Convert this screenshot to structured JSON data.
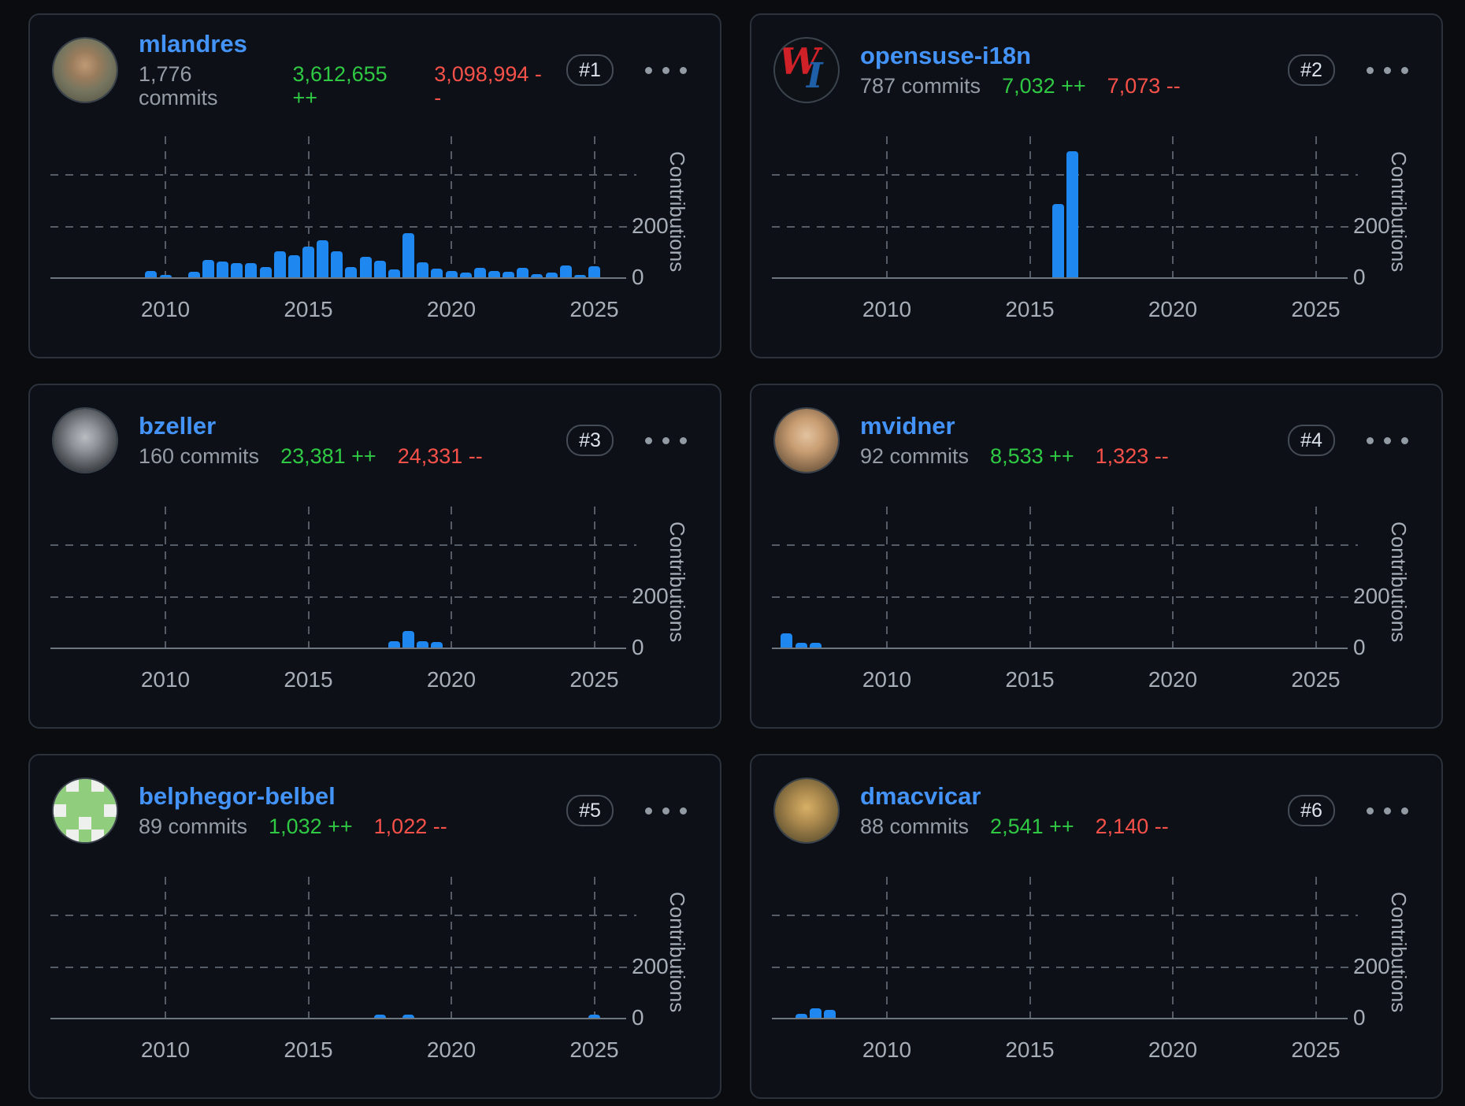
{
  "colors": {
    "page_bg": "#0a0c10",
    "card_bg": "#0d1117",
    "card_border": "#2b323b",
    "username_link": "#4493f8",
    "commits_text": "#959ca5",
    "additions_text": "#2fc944",
    "deletions_text": "#f85149",
    "bar_color": "#1e87f0",
    "gridline": "#555c66",
    "axis_text": "#a7aeb8"
  },
  "axis": {
    "x_ticks": [
      2010,
      2015,
      2020,
      2025
    ],
    "x_tick_labels": [
      "2010",
      "2015",
      "2020",
      "2025"
    ],
    "y_tick_labels": [
      "200",
      "0"
    ],
    "y_gridline_values": [
      200,
      400
    ],
    "y_axis_label": "Contributions",
    "x_domain_years": [
      2006.3,
      2026.1
    ],
    "grid": "dashed"
  },
  "cards": [
    {
      "username": "mlandres",
      "rank": "#1",
      "commits": "1,776 commits",
      "additions": "3,612,655 ++",
      "deletions": "3,098,994 --"
    },
    {
      "username": "opensuse-i18n",
      "rank": "#2",
      "commits": "787 commits",
      "additions": "7,032 ++",
      "deletions": "7,073 --",
      "avatar_w": "W",
      "avatar_i": "I"
    },
    {
      "username": "bzeller",
      "rank": "#3",
      "commits": "160 commits",
      "additions": "23,381 ++",
      "deletions": "24,331 --"
    },
    {
      "username": "mvidner",
      "rank": "#4",
      "commits": "92 commits",
      "additions": "8,533 ++",
      "deletions": "1,323 --"
    },
    {
      "username": "belphegor-belbel",
      "rank": "#5",
      "commits": "89 commits",
      "additions": "1,032 ++",
      "deletions": "1,022 --",
      "avatar_pattern": [
        "10101",
        "11111",
        "01110",
        "11011",
        "10101"
      ]
    },
    {
      "username": "dmacvicar",
      "rank": "#6",
      "commits": "88 commits",
      "additions": "2,541 ++",
      "deletions": "2,140 --"
    }
  ],
  "chart_data": [
    {
      "type": "bar",
      "user": "mlandres",
      "x_unit": "half-year",
      "ylim": [
        0,
        500
      ],
      "points": [
        [
          2009.5,
          25
        ],
        [
          2010,
          10
        ],
        [
          2011,
          21
        ],
        [
          2011.5,
          67
        ],
        [
          2012,
          60
        ],
        [
          2012.5,
          55
        ],
        [
          2013,
          55
        ],
        [
          2013.5,
          40
        ],
        [
          2014,
          100
        ],
        [
          2014.5,
          85
        ],
        [
          2015,
          120
        ],
        [
          2015.5,
          145
        ],
        [
          2016,
          100
        ],
        [
          2016.5,
          40
        ],
        [
          2017,
          80
        ],
        [
          2017.5,
          65
        ],
        [
          2018,
          30
        ],
        [
          2018.5,
          170
        ],
        [
          2019,
          58
        ],
        [
          2019.5,
          33
        ],
        [
          2020,
          25
        ],
        [
          2020.5,
          18
        ],
        [
          2021,
          36
        ],
        [
          2021.5,
          24
        ],
        [
          2022,
          21
        ],
        [
          2022.5,
          37
        ],
        [
          2023,
          13
        ],
        [
          2023.5,
          18
        ],
        [
          2024,
          45
        ],
        [
          2024.5,
          6
        ],
        [
          2025,
          42
        ]
      ]
    },
    {
      "type": "bar",
      "user": "opensuse-i18n",
      "x_unit": "half-year",
      "ylim": [
        0,
        500
      ],
      "points": [
        [
          2016,
          285
        ],
        [
          2016.5,
          490
        ]
      ]
    },
    {
      "type": "bar",
      "user": "bzeller",
      "x_unit": "half-year",
      "ylim": [
        0,
        500
      ],
      "points": [
        [
          2018,
          25
        ],
        [
          2018.5,
          64
        ],
        [
          2019,
          25
        ],
        [
          2019.5,
          20
        ]
      ]
    },
    {
      "type": "bar",
      "user": "mvidner",
      "x_unit": "half-year",
      "ylim": [
        0,
        500
      ],
      "points": [
        [
          2006.5,
          55
        ],
        [
          2007,
          18
        ],
        [
          2007.5,
          18
        ]
      ]
    },
    {
      "type": "bar",
      "user": "belphegor-belbel",
      "x_unit": "half-year",
      "ylim": [
        0,
        500
      ],
      "points": [
        [
          2017.5,
          12
        ],
        [
          2018.5,
          12
        ],
        [
          2025,
          12
        ]
      ]
    },
    {
      "type": "bar",
      "user": "dmacvicar",
      "x_unit": "half-year",
      "ylim": [
        0,
        500
      ],
      "points": [
        [
          2007,
          16
        ],
        [
          2007.5,
          37
        ],
        [
          2008,
          32
        ]
      ]
    }
  ]
}
